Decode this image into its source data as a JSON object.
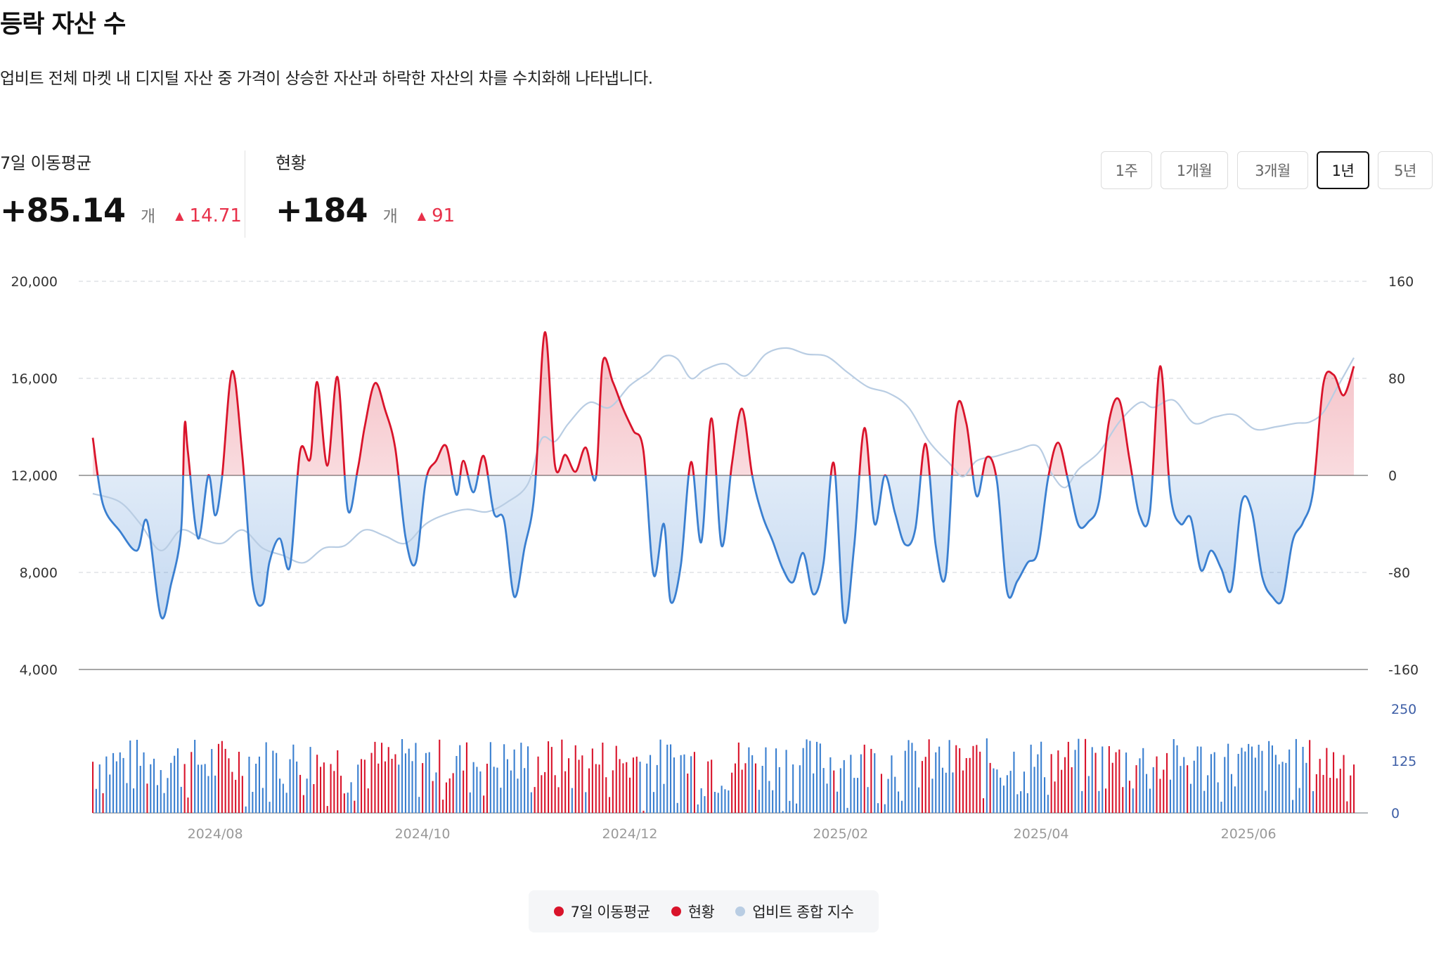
{
  "title": "등락 자산 수",
  "description": "업비트 전체 마켓 내 디지털 자산 중 가격이 상승한 자산과 하락한 자산의 차를 수치화해 나타냅니다.",
  "stats": {
    "moving_average": {
      "label": "7일 이동평균",
      "value": "+85.14",
      "unit": "개",
      "change": "14.71"
    },
    "current": {
      "label": "현황",
      "value": "+184",
      "unit": "개",
      "change": "91"
    }
  },
  "ranges": [
    "1주",
    "1개월",
    "3개월",
    "1년",
    "5년"
  ],
  "selected_range": "1년",
  "colors": {
    "up": "#d9142b",
    "down": "#3a7fd0",
    "index": "#b9cde3",
    "change": "#e8314a",
    "volume_axis": "#3d5ea6"
  },
  "chart_data": {
    "type": "line",
    "x_start": "2024-06-26",
    "x_end": "2025-06-25",
    "xticks": [
      "2024/08",
      "2024/10",
      "2024/12",
      "2025/02",
      "2025/04",
      "2025/06"
    ],
    "y_left": {
      "ticks": [
        "20,000",
        "16,000",
        "12,000",
        "8,000",
        "4,000"
      ],
      "lim": [
        4000,
        20000
      ]
    },
    "y_right": {
      "ticks": [
        "160",
        "80",
        "0",
        "-80",
        "-160"
      ],
      "lim": [
        -160,
        160
      ],
      "baseline": 0
    },
    "y_volume": {
      "ticks": [
        "250",
        "125",
        "0"
      ],
      "lim": [
        0,
        250
      ]
    },
    "series": [
      {
        "name": "7일 이동평균",
        "axis": "right",
        "points": [
          [
            0,
            31
          ],
          [
            3,
            -24
          ],
          [
            8,
            -46
          ],
          [
            13,
            -62
          ],
          [
            16,
            -38
          ],
          [
            20,
            -116
          ],
          [
            23,
            -90
          ],
          [
            26,
            -45
          ],
          [
            27,
            41
          ],
          [
            28,
            19
          ],
          [
            31,
            -52
          ],
          [
            34,
            0
          ],
          [
            36,
            -33
          ],
          [
            38,
            -2
          ],
          [
            41,
            86
          ],
          [
            44,
            16
          ],
          [
            47,
            -89
          ],
          [
            50,
            -106
          ],
          [
            52,
            -71
          ],
          [
            55,
            -52
          ],
          [
            58,
            -75
          ],
          [
            61,
            20
          ],
          [
            64,
            14
          ],
          [
            66,
            77
          ],
          [
            69,
            8
          ],
          [
            72,
            81
          ],
          [
            75,
            -28
          ],
          [
            78,
            6
          ],
          [
            80,
            40
          ],
          [
            83,
            76
          ],
          [
            86,
            54
          ],
          [
            89,
            22
          ],
          [
            92,
            -51
          ],
          [
            95,
            -72
          ],
          [
            98,
            -4
          ],
          [
            101,
            12
          ],
          [
            104,
            24
          ],
          [
            107,
            -16
          ],
          [
            109,
            12
          ],
          [
            112,
            -14
          ],
          [
            115,
            16
          ],
          [
            118,
            -31
          ],
          [
            121,
            -37
          ],
          [
            124,
            -100
          ],
          [
            127,
            -60
          ],
          [
            130,
            -13
          ],
          [
            133,
            118
          ],
          [
            136,
            8
          ],
          [
            139,
            17
          ],
          [
            142,
            3
          ],
          [
            145,
            23
          ],
          [
            148,
            -2
          ],
          [
            150,
            93
          ],
          [
            153,
            77
          ],
          [
            156,
            55
          ],
          [
            159,
            37
          ],
          [
            162,
            20
          ],
          [
            165,
            -82
          ],
          [
            168,
            -40
          ],
          [
            170,
            -104
          ],
          [
            173,
            -74
          ],
          [
            176,
            11
          ],
          [
            179,
            -55
          ],
          [
            182,
            47
          ],
          [
            185,
            -58
          ],
          [
            188,
            9
          ],
          [
            191,
            55
          ],
          [
            194,
            0
          ],
          [
            197,
            -33
          ],
          [
            200,
            -54
          ],
          [
            203,
            -77
          ],
          [
            206,
            -88
          ],
          [
            209,
            -64
          ],
          [
            212,
            -98
          ],
          [
            215,
            -72
          ],
          [
            218,
            10
          ],
          [
            221,
            -120
          ],
          [
            224,
            -58
          ],
          [
            227,
            39
          ],
          [
            230,
            -40
          ],
          [
            233,
            0
          ],
          [
            236,
            -31
          ],
          [
            239,
            -57
          ],
          [
            242,
            -44
          ],
          [
            245,
            26
          ],
          [
            248,
            -58
          ],
          [
            251,
            -81
          ],
          [
            254,
            52
          ],
          [
            257,
            43
          ],
          [
            260,
            -17
          ],
          [
            263,
            15
          ],
          [
            266,
            -5
          ],
          [
            269,
            -96
          ],
          [
            272,
            -87
          ],
          [
            275,
            -72
          ],
          [
            278,
            -63
          ],
          [
            281,
            -3
          ],
          [
            284,
            27
          ],
          [
            287,
            -5
          ],
          [
            290,
            -41
          ],
          [
            293,
            -38
          ],
          [
            296,
            -22
          ],
          [
            299,
            45
          ],
          [
            302,
            62
          ],
          [
            305,
            13
          ],
          [
            308,
            -33
          ],
          [
            311,
            -30
          ],
          [
            314,
            90
          ],
          [
            317,
            -15
          ],
          [
            320,
            -40
          ],
          [
            323,
            -35
          ],
          [
            326,
            -78
          ],
          [
            329,
            -62
          ],
          [
            332,
            -77
          ],
          [
            335,
            -94
          ],
          [
            338,
            -22
          ],
          [
            341,
            -30
          ],
          [
            344,
            -83
          ],
          [
            347,
            -100
          ],
          [
            350,
            -102
          ],
          [
            353,
            -54
          ],
          [
            356,
            -39
          ],
          [
            359,
            -13
          ],
          [
            362,
            75
          ],
          [
            365,
            83
          ],
          [
            368,
            66
          ],
          [
            371,
            90
          ]
        ]
      },
      {
        "name": "업비트 종합 지수",
        "axis": "right",
        "points": [
          [
            0,
            -15
          ],
          [
            8,
            -22
          ],
          [
            14,
            -40
          ],
          [
            20,
            -62
          ],
          [
            26,
            -45
          ],
          [
            32,
            -52
          ],
          [
            38,
            -56
          ],
          [
            44,
            -45
          ],
          [
            50,
            -60
          ],
          [
            56,
            -66
          ],
          [
            62,
            -72
          ],
          [
            68,
            -60
          ],
          [
            74,
            -58
          ],
          [
            80,
            -45
          ],
          [
            86,
            -50
          ],
          [
            92,
            -56
          ],
          [
            98,
            -40
          ],
          [
            104,
            -32
          ],
          [
            110,
            -28
          ],
          [
            116,
            -30
          ],
          [
            122,
            -22
          ],
          [
            128,
            -7
          ],
          [
            132,
            30
          ],
          [
            136,
            28
          ],
          [
            140,
            43
          ],
          [
            146,
            60
          ],
          [
            152,
            56
          ],
          [
            158,
            74
          ],
          [
            164,
            86
          ],
          [
            168,
            98
          ],
          [
            172,
            96
          ],
          [
            176,
            80
          ],
          [
            180,
            87
          ],
          [
            186,
            92
          ],
          [
            192,
            82
          ],
          [
            198,
            100
          ],
          [
            204,
            105
          ],
          [
            210,
            100
          ],
          [
            216,
            98
          ],
          [
            222,
            85
          ],
          [
            228,
            73
          ],
          [
            234,
            68
          ],
          [
            240,
            56
          ],
          [
            246,
            28
          ],
          [
            252,
            10
          ],
          [
            256,
            -1
          ],
          [
            260,
            12
          ],
          [
            266,
            16
          ],
          [
            272,
            21
          ],
          [
            278,
            24
          ],
          [
            282,
            2
          ],
          [
            286,
            -10
          ],
          [
            290,
            5
          ],
          [
            296,
            19
          ],
          [
            302,
            44
          ],
          [
            308,
            60
          ],
          [
            312,
            56
          ],
          [
            318,
            62
          ],
          [
            324,
            43
          ],
          [
            330,
            48
          ],
          [
            336,
            50
          ],
          [
            342,
            38
          ],
          [
            348,
            40
          ],
          [
            354,
            43
          ],
          [
            358,
            44
          ],
          [
            362,
            52
          ],
          [
            366,
            72
          ],
          [
            371,
            97
          ]
        ]
      }
    ],
    "volume": {
      "name": "현황",
      "axis": "volume",
      "note": "daily bars colored by sign of 현황"
    }
  },
  "legend": [
    {
      "label": "7일 이동평균",
      "color": "#d9142b"
    },
    {
      "label": "현황",
      "color": "#d9142b"
    },
    {
      "label": "업비트 종합 지수",
      "color": "#b9cde3"
    }
  ]
}
